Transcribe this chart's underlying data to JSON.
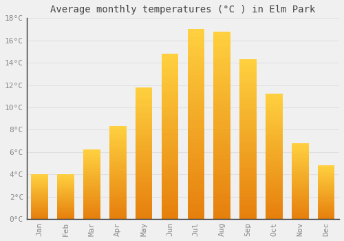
{
  "months": [
    "Jan",
    "Feb",
    "Mar",
    "Apr",
    "May",
    "Jun",
    "Jul",
    "Aug",
    "Sep",
    "Oct",
    "Nov",
    "Dec"
  ],
  "values": [
    4.0,
    4.0,
    6.2,
    8.3,
    11.8,
    14.8,
    17.0,
    16.8,
    14.3,
    11.2,
    6.8,
    4.8
  ],
  "bar_color_main": "#FFA500",
  "bar_color_light": "#FFD060",
  "bar_color_dark": "#E08000",
  "title": "Average monthly temperatures (°C ) in Elm Park",
  "ylim": [
    0,
    18
  ],
  "yticks": [
    0,
    2,
    4,
    6,
    8,
    10,
    12,
    14,
    16,
    18
  ],
  "ytick_labels": [
    "0°C",
    "2°C",
    "4°C",
    "6°C",
    "8°C",
    "10°C",
    "12°C",
    "14°C",
    "16°C",
    "18°C"
  ],
  "background_color": "#f0f0f0",
  "grid_color": "#e0e0e0",
  "title_fontsize": 10,
  "tick_fontsize": 8,
  "tick_color": "#888888",
  "title_color": "#444444"
}
